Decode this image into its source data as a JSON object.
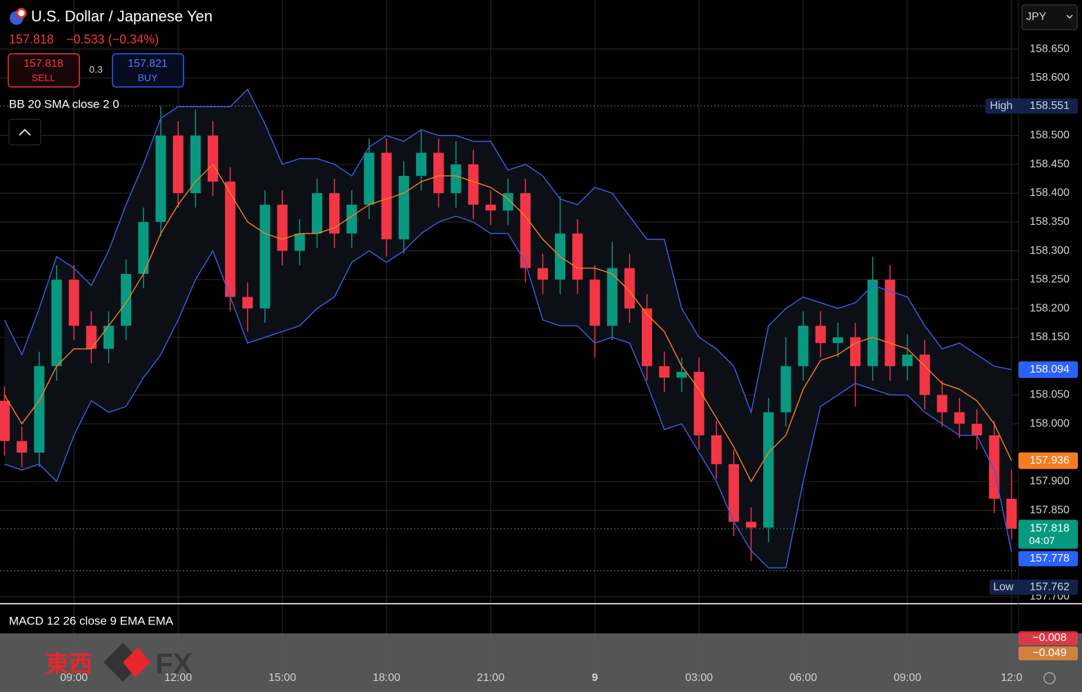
{
  "chart_data": {
    "type": "candlestick",
    "title": "U.S. Dollar / Japanese Yen",
    "quote": "157.818",
    "change": "−0.533 (−0.34%)",
    "sell_price": "157.818",
    "sell_label": "SELL",
    "spread": "0.3",
    "buy_price": "157.821",
    "buy_label": "BUY",
    "currency": "JPY",
    "bb_label": "BB 20 SMA close 2 0",
    "macd_label": "MACD 12 26 close 9 EMA EMA",
    "macd_values": [
      {
        "value": -0.008,
        "label": "−0.008",
        "color": "#f23645"
      },
      {
        "value": -0.049,
        "label": "−0.049",
        "color": "#e8893c"
      }
    ],
    "watermark": [
      "東西",
      "FX"
    ],
    "up_color": "#089981",
    "down_color": "#f23645",
    "grid": true,
    "xlim": [
      6.87,
      36.2
    ],
    "xticks": [
      {
        "value": 9,
        "label": "09:00"
      },
      {
        "value": 12,
        "label": "12:00"
      },
      {
        "value": 15,
        "label": "15:00"
      },
      {
        "value": 18,
        "label": "18:00"
      },
      {
        "value": 21,
        "label": "21:00"
      },
      {
        "value": 24,
        "label": "9"
      },
      {
        "value": 27,
        "label": "03:00"
      },
      {
        "value": 30,
        "label": "06:00"
      },
      {
        "value": 33,
        "label": "09:00"
      },
      {
        "value": 36,
        "label": "12:0"
      }
    ],
    "ylim": [
      157.688,
      158.735
    ],
    "yticks": [
      {
        "value": 158.65,
        "label": "158.650"
      },
      {
        "value": 158.6,
        "label": "158.600"
      },
      {
        "value": 158.5,
        "label": "158.500"
      },
      {
        "value": 158.45,
        "label": "158.450"
      },
      {
        "value": 158.4,
        "label": "158.400"
      },
      {
        "value": 158.35,
        "label": "158.350"
      },
      {
        "value": 158.3,
        "label": "158.300"
      },
      {
        "value": 158.25,
        "label": "158.250"
      },
      {
        "value": 158.2,
        "label": "158.200"
      },
      {
        "value": 158.15,
        "label": "158.150"
      },
      {
        "value": 158.05,
        "label": "158.050"
      },
      {
        "value": 158.0,
        "label": "158.000"
      },
      {
        "value": 157.9,
        "label": "157.900"
      },
      {
        "value": 157.85,
        "label": "157.850"
      },
      {
        "value": 157.7,
        "label": "157.700"
      }
    ],
    "x": [
      7.0,
      7.5,
      8.0,
      8.5,
      9.0,
      9.5,
      10.0,
      10.5,
      11.0,
      11.5,
      12.0,
      12.5,
      13.0,
      13.5,
      14.0,
      14.5,
      15.0,
      15.5,
      16.0,
      16.5,
      17.0,
      17.5,
      18.0,
      18.5,
      19.0,
      19.5,
      20.0,
      20.5,
      21.0,
      21.5,
      22.0,
      22.5,
      23.0,
      23.5,
      24.0,
      24.5,
      25.0,
      25.5,
      26.0,
      26.5,
      27.0,
      27.5,
      28.0,
      28.5,
      29.0,
      29.5,
      30.0,
      30.5,
      31.0,
      31.5,
      32.0,
      32.5,
      33.0,
      33.5,
      34.0,
      34.5,
      35.0,
      35.5,
      36.0
    ],
    "open": [
      158.04,
      157.97,
      157.95,
      158.1,
      158.25,
      158.17,
      158.13,
      158.17,
      158.26,
      158.35,
      158.5,
      158.4,
      158.5,
      158.42,
      158.22,
      158.2,
      158.38,
      158.3,
      158.33,
      158.4,
      158.33,
      158.38,
      158.47,
      158.32,
      158.43,
      158.47,
      158.4,
      158.45,
      158.38,
      158.37,
      158.4,
      158.27,
      158.25,
      158.33,
      158.25,
      158.17,
      158.27,
      158.2,
      158.1,
      158.08,
      158.09,
      157.98,
      157.93,
      157.83,
      157.82,
      158.02,
      158.1,
      158.17,
      158.14,
      158.15,
      158.1,
      158.25,
      158.1,
      158.12,
      158.05,
      158.02,
      158.0,
      157.98,
      157.87
    ],
    "high": [
      158.065,
      157.995,
      158.125,
      158.275,
      158.275,
      158.195,
      158.195,
      158.285,
      158.375,
      158.551,
      158.525,
      158.545,
      158.525,
      158.445,
      158.245,
      158.405,
      158.405,
      158.355,
      158.425,
      158.425,
      158.405,
      158.495,
      158.495,
      158.455,
      158.51,
      158.495,
      158.49,
      158.475,
      158.405,
      158.425,
      158.425,
      158.295,
      158.395,
      158.355,
      158.275,
      158.315,
      158.295,
      158.225,
      158.125,
      158.115,
      158.115,
      158.005,
      157.955,
      157.855,
      158.045,
      158.15,
      158.195,
      158.195,
      158.175,
      158.175,
      158.29,
      158.275,
      158.155,
      158.145,
      158.075,
      158.045,
      158.025,
      158.005,
      157.92
    ],
    "low": [
      157.945,
      157.925,
      157.925,
      158.075,
      158.145,
      158.105,
      158.105,
      158.145,
      158.235,
      158.325,
      158.375,
      158.375,
      158.395,
      158.195,
      158.16,
      158.175,
      158.275,
      158.275,
      158.305,
      158.305,
      158.305,
      158.355,
      158.29,
      158.295,
      158.405,
      158.375,
      158.375,
      158.355,
      158.345,
      158.345,
      158.245,
      158.225,
      158.225,
      158.225,
      158.115,
      158.145,
      158.175,
      158.075,
      158.055,
      158.055,
      157.955,
      157.905,
      157.805,
      157.762,
      157.795,
      157.995,
      158.075,
      158.115,
      158.115,
      158.03,
      158.075,
      158.075,
      158.075,
      158.025,
      157.995,
      157.975,
      157.955,
      157.845,
      157.8
    ],
    "close": [
      157.97,
      157.95,
      158.1,
      158.25,
      158.17,
      158.13,
      158.17,
      158.26,
      158.35,
      158.5,
      158.4,
      158.5,
      158.42,
      158.22,
      158.2,
      158.38,
      158.3,
      158.33,
      158.4,
      158.33,
      158.38,
      158.47,
      158.32,
      158.43,
      158.47,
      158.4,
      158.45,
      158.38,
      158.37,
      158.4,
      158.27,
      158.25,
      158.33,
      158.25,
      158.17,
      158.27,
      158.2,
      158.1,
      158.08,
      158.09,
      157.98,
      157.93,
      157.83,
      157.82,
      158.02,
      158.1,
      158.17,
      158.14,
      158.15,
      158.1,
      158.25,
      158.1,
      158.12,
      158.05,
      158.02,
      158.0,
      157.98,
      157.87,
      157.818
    ],
    "bands": {
      "band_color": "#3d5ce0",
      "middle_color": "#f57c1f",
      "fill": "#0c0f16",
      "upper": [
        158.18,
        158.12,
        158.2,
        158.29,
        158.27,
        158.24,
        158.3,
        158.38,
        158.45,
        158.53,
        158.55,
        158.55,
        158.55,
        158.55,
        158.58,
        158.52,
        158.45,
        158.46,
        158.46,
        158.45,
        158.43,
        158.48,
        158.5,
        158.49,
        158.51,
        158.5,
        158.5,
        158.49,
        158.49,
        158.44,
        158.45,
        158.43,
        158.39,
        158.38,
        158.41,
        158.4,
        158.36,
        158.32,
        158.32,
        158.2,
        158.15,
        158.13,
        158.1,
        158.02,
        158.17,
        158.2,
        158.22,
        158.21,
        158.2,
        158.21,
        158.24,
        158.23,
        158.22,
        158.17,
        158.13,
        158.14,
        158.12,
        158.1,
        158.094
      ],
      "middle": [
        158.05,
        158.0,
        158.04,
        158.1,
        158.13,
        158.13,
        158.17,
        158.21,
        158.26,
        158.33,
        158.38,
        158.42,
        158.45,
        158.4,
        158.35,
        158.33,
        158.32,
        158.33,
        158.33,
        158.34,
        158.36,
        158.38,
        158.39,
        158.4,
        158.42,
        158.43,
        158.43,
        158.42,
        158.41,
        158.39,
        158.36,
        158.32,
        158.29,
        158.27,
        158.27,
        158.26,
        158.23,
        158.19,
        158.16,
        158.1,
        158.06,
        158.01,
        157.96,
        157.9,
        157.95,
        157.98,
        158.06,
        158.11,
        158.12,
        158.14,
        158.15,
        158.14,
        158.13,
        158.1,
        158.07,
        158.06,
        158.04,
        158.0,
        157.936
      ],
      "lower": [
        157.93,
        157.92,
        157.93,
        157.9,
        157.98,
        158.04,
        158.02,
        158.03,
        158.08,
        158.12,
        158.18,
        158.25,
        158.3,
        158.22,
        158.14,
        158.15,
        158.16,
        158.17,
        158.2,
        158.22,
        158.28,
        158.3,
        158.28,
        158.3,
        158.33,
        158.35,
        158.36,
        158.35,
        158.33,
        158.33,
        158.28,
        158.18,
        158.17,
        158.17,
        158.14,
        158.15,
        158.14,
        158.07,
        157.99,
        158.0,
        157.95,
        157.9,
        157.83,
        157.78,
        157.75,
        157.75,
        157.9,
        158.03,
        158.05,
        158.07,
        158.06,
        158.05,
        158.05,
        158.02,
        158.0,
        157.98,
        157.98,
        157.92,
        157.778
      ]
    },
    "high_label": "High",
    "high_value": 158.551,
    "low_label": "Low",
    "low_value": 157.762,
    "countdown": "04:07"
  }
}
